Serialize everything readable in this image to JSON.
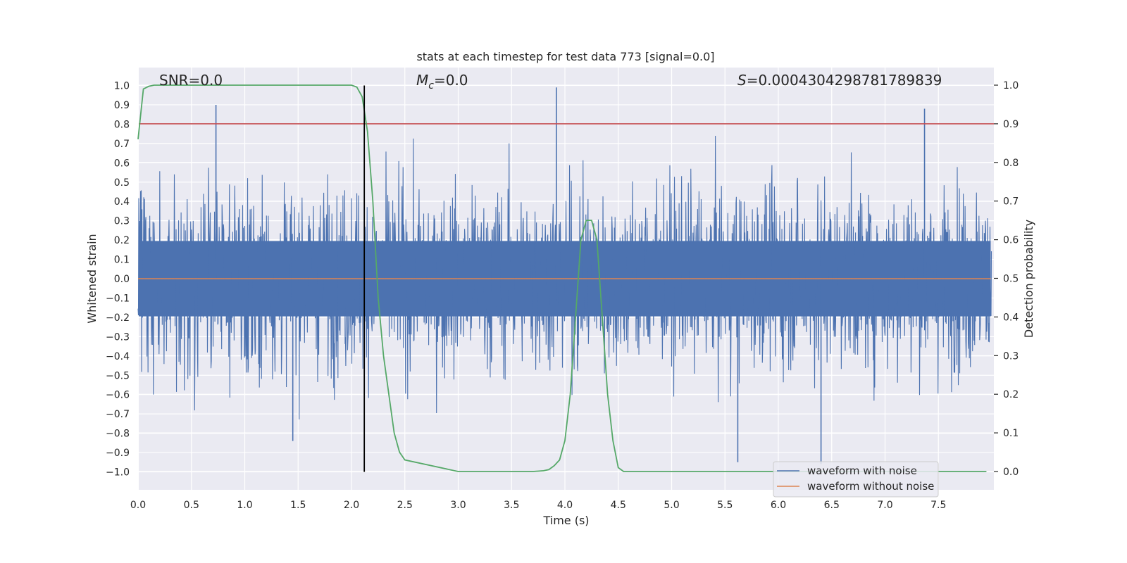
{
  "chart_data": {
    "type": "line",
    "title": "stats at each timestep for test data 773 [signal=0.0]",
    "xlabel": "Time (s)",
    "ylabel_left": "Whitened strain",
    "ylabel_right": "Detection probability",
    "xlim": [
      0.0,
      8.0
    ],
    "ylim_left": [
      -1.1,
      1.1
    ],
    "ylim_right": [
      -0.05,
      1.05
    ],
    "xticks": [
      "0.0",
      "0.5",
      "1.0",
      "1.5",
      "2.0",
      "2.5",
      "3.0",
      "3.5",
      "4.0",
      "4.5",
      "5.0",
      "5.5",
      "6.0",
      "6.5",
      "7.0",
      "7.5"
    ],
    "yticks_left": [
      "1.0",
      "0.9",
      "0.8",
      "0.7",
      "0.6",
      "0.5",
      "0.4",
      "0.3",
      "0.2",
      "0.1",
      "0.0",
      "−0.1",
      "−0.2",
      "−0.3",
      "−0.4",
      "−0.5",
      "−0.6",
      "−0.7",
      "−0.8",
      "−0.9",
      "−1.0"
    ],
    "yticks_right": [
      "1.0",
      "0.9",
      "0.8",
      "0.7",
      "0.6",
      "0.5",
      "0.4",
      "0.3",
      "0.2",
      "0.1",
      "0.0"
    ],
    "grid": true,
    "legend_position": "lower-right",
    "annotations": {
      "snr": "SNR=0.0",
      "mc_symbol": "M",
      "mc_sub": "c",
      "mc_value": "=0.0",
      "s_symbol": "S",
      "s_value": "=0.0004304298781789839"
    },
    "series": [
      {
        "name": "waveform with noise",
        "color": "#4c72b0",
        "axis": "left",
        "description_values": "dense noise approximately within [-0.95, 1.0] sampled over t in [0, 8)"
      },
      {
        "name": "waveform without noise",
        "color": "#dd8452",
        "axis": "left",
        "values": [
          0.0,
          0.0
        ]
      },
      {
        "color": "#55a868",
        "axis": "right",
        "x": [
          0.0,
          0.05,
          0.1,
          0.15,
          0.2,
          0.5,
          1.0,
          1.5,
          1.9,
          2.0,
          2.05,
          2.1,
          2.15,
          2.2,
          2.25,
          2.3,
          2.35,
          2.4,
          2.45,
          2.5,
          3.0,
          3.5,
          3.7,
          3.8,
          3.85,
          3.9,
          3.95,
          4.0,
          4.05,
          4.1,
          4.15,
          4.2,
          4.25,
          4.3,
          4.35,
          4.4,
          4.45,
          4.5,
          4.55,
          4.6,
          5.0,
          6.0,
          7.0,
          7.5,
          7.95
        ],
        "values": [
          0.86,
          0.99,
          0.997,
          1.0,
          1.0,
          1.0,
          1.0,
          1.0,
          1.0,
          1.0,
          0.995,
          0.97,
          0.88,
          0.7,
          0.45,
          0.3,
          0.2,
          0.1,
          0.05,
          0.03,
          0.0,
          0.0,
          0.0,
          0.002,
          0.005,
          0.015,
          0.03,
          0.08,
          0.2,
          0.4,
          0.6,
          0.65,
          0.65,
          0.6,
          0.4,
          0.2,
          0.08,
          0.01,
          0.0,
          0.0,
          0.0,
          0.0,
          0.0,
          0.0,
          0.0
        ]
      }
    ],
    "hlines": [
      {
        "axis": "right",
        "y": 0.9,
        "color": "#c44e52"
      }
    ],
    "vlines": [
      {
        "x": 2.12,
        "y_range": [
          -1.0,
          1.0
        ],
        "color": "#000000"
      }
    ]
  },
  "legend": {
    "items": [
      {
        "label": "waveform with noise",
        "color": "#4c72b0"
      },
      {
        "label": "waveform without noise",
        "color": "#dd8452"
      }
    ]
  }
}
